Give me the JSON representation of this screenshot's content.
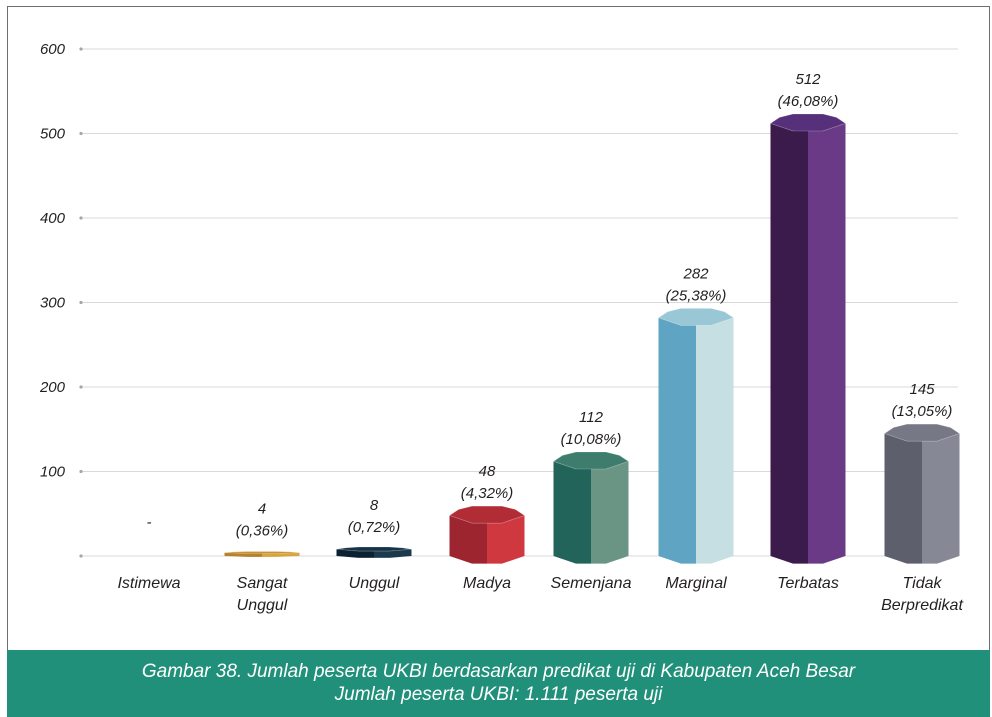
{
  "chart_data": {
    "type": "bar",
    "categories": [
      "Istimewa",
      "Sangat Unggul",
      "Unggul",
      "Madya",
      "Semenjana",
      "Marginal",
      "Terbatas",
      "Tidak Berpredikat"
    ],
    "category_lines": [
      [
        "Istimewa"
      ],
      [
        "Sangat",
        "Unggul"
      ],
      [
        "Unggul"
      ],
      [
        "Madya"
      ],
      [
        "Semenjana"
      ],
      [
        "Marginal"
      ],
      [
        "Terbatas"
      ],
      [
        "Tidak",
        "Berpredikat"
      ]
    ],
    "values": [
      0,
      4,
      8,
      48,
      112,
      282,
      512,
      145
    ],
    "value_labels": [
      "-",
      "4",
      "8",
      "48",
      "112",
      "282",
      "512",
      "145"
    ],
    "percent_labels": [
      "",
      "(0,36%)",
      "(0,72%)",
      "(4,32%)",
      "(10,08%)",
      "(25,38%)",
      "(46,08%)",
      "(13,05%)"
    ],
    "ylim": [
      0,
      600
    ],
    "yticks": [
      100,
      200,
      300,
      400,
      500,
      600
    ],
    "grid": true,
    "bar_colors": [
      {
        "dark": "#777777",
        "light": "#999999",
        "top": "#aaaaaa"
      },
      {
        "dark": "#b8802a",
        "light": "#d9a43e",
        "top": "#c79232"
      },
      {
        "dark": "#0d2230",
        "light": "#1c3a4d",
        "top": "#173247"
      },
      {
        "dark": "#9d2530",
        "light": "#d03840",
        "top": "#b22c36"
      },
      {
        "dark": "#22645a",
        "light": "#6a9585",
        "top": "#3e7d6e"
      },
      {
        "dark": "#5fa4c3",
        "light": "#c6dfe3",
        "top": "#9ac7d6"
      },
      {
        "dark": "#3b1a4c",
        "light": "#6b3a86",
        "top": "#56307a"
      },
      {
        "dark": "#5e5f6c",
        "light": "#878895",
        "top": "#777885"
      }
    ]
  },
  "caption": {
    "line1": "Gambar 38. Jumlah peserta UKBI berdasarkan predikat uji di Kabupaten Aceh Besar",
    "line2": "Jumlah peserta UKBI: 1.111 peserta uji"
  }
}
